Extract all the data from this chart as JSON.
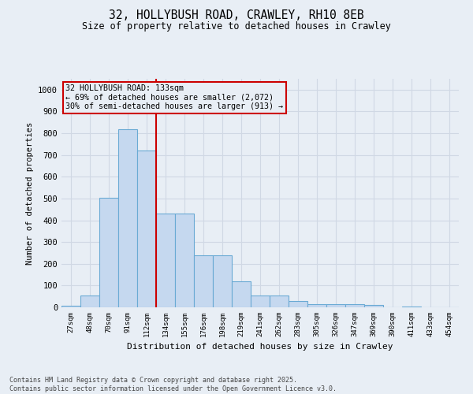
{
  "title_line1": "32, HOLLYBUSH ROAD, CRAWLEY, RH10 8EB",
  "title_line2": "Size of property relative to detached houses in Crawley",
  "xlabel": "Distribution of detached houses by size in Crawley",
  "ylabel": "Number of detached properties",
  "categories": [
    "27sqm",
    "48sqm",
    "70sqm",
    "91sqm",
    "112sqm",
    "134sqm",
    "155sqm",
    "176sqm",
    "198sqm",
    "219sqm",
    "241sqm",
    "262sqm",
    "283sqm",
    "305sqm",
    "326sqm",
    "347sqm",
    "369sqm",
    "390sqm",
    "411sqm",
    "433sqm",
    "454sqm"
  ],
  "values": [
    8,
    55,
    505,
    820,
    720,
    430,
    430,
    240,
    240,
    120,
    55,
    55,
    30,
    15,
    15,
    15,
    12,
    0,
    5,
    0,
    0
  ],
  "bar_color": "#c5d8ef",
  "bar_edge_color": "#6aaad4",
  "bg_color": "#e8eef5",
  "grid_color": "#d0d8e4",
  "annotation_box_color": "#cc0000",
  "annotation_text_line1": "32 HOLLYBUSH ROAD: 133sqm",
  "annotation_text_line2": "← 69% of detached houses are smaller (2,072)",
  "annotation_text_line3": "30% of semi-detached houses are larger (913) →",
  "ylim": [
    0,
    1050
  ],
  "yticks": [
    0,
    100,
    200,
    300,
    400,
    500,
    600,
    700,
    800,
    900,
    1000
  ],
  "footer_line1": "Contains HM Land Registry data © Crown copyright and database right 2025.",
  "footer_line2": "Contains public sector information licensed under the Open Government Licence v3.0."
}
